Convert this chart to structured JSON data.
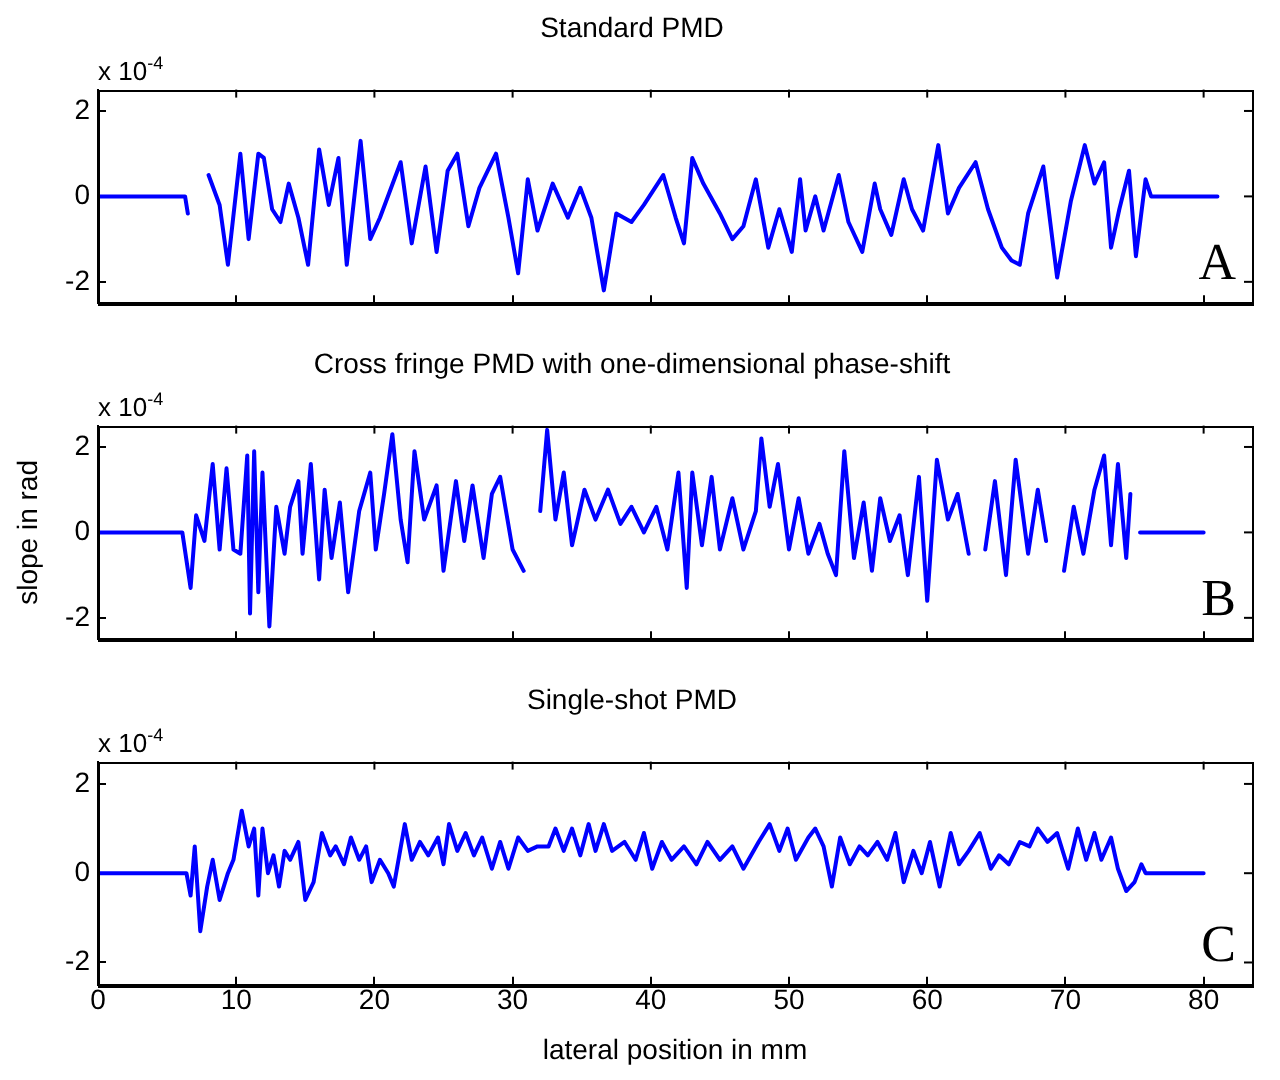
{
  "chart_data": [
    {
      "type": "line",
      "title": "Standard PMD",
      "annotations": [
        "x 10$^{-4}$",
        "A"
      ],
      "xlim": [
        0,
        83.5
      ],
      "xticks": [
        0,
        10,
        20,
        30,
        40,
        50,
        60,
        70,
        80
      ],
      "ylim": [
        -2.5,
        2.5
      ],
      "yticks": [
        -2,
        0,
        2
      ],
      "tick_labels": "y",
      "grid": false,
      "legend": false,
      "marker": "none",
      "line_style": "solid",
      "series": [
        {
          "color": "#0000ff",
          "x": [
            0,
            6.3,
            6.5,
            7.1,
            8.0,
            8.8,
            9.4,
            10.3,
            10.9,
            11.6,
            12.0,
            12.6,
            13.2,
            13.8,
            14.5,
            15.2,
            16.0,
            16.7,
            17.4,
            18.0,
            19.0,
            19.7,
            20.4,
            21.9,
            22.7,
            23.7,
            24.5,
            25.3,
            26.0,
            26.8,
            27.6,
            28.8,
            29.7,
            30.4,
            31.1,
            31.8,
            32.9,
            34.0,
            34.9,
            35.7,
            36.6,
            37.5,
            38.6,
            39.5,
            40.9,
            41.8,
            42.4,
            43.0,
            43.8,
            45.0,
            45.9,
            46.7,
            47.6,
            48.5,
            49.3,
            50.2,
            50.8,
            51.2,
            51.9,
            52.5,
            53.6,
            54.3,
            55.3,
            56.2,
            56.6,
            57.4,
            58.3,
            58.9,
            59.7,
            60.8,
            61.5,
            62.3,
            63.5,
            64.4,
            65.4,
            66.1,
            66.7,
            67.3,
            68.4,
            69.4,
            70.4,
            71.4,
            72.1,
            72.8,
            73.3,
            73.9,
            74.6,
            75.1,
            75.8,
            76.2,
            81.0
          ],
          "values": [
            0,
            0,
            -0.4,
            null,
            0.5,
            -0.2,
            -1.6,
            1.0,
            -1.0,
            1.0,
            0.9,
            -0.3,
            -0.6,
            0.3,
            -0.5,
            -1.6,
            1.1,
            -0.2,
            0.9,
            -1.6,
            1.3,
            -1.0,
            -0.5,
            0.8,
            -1.1,
            0.7,
            -1.3,
            0.6,
            1.0,
            -0.7,
            0.2,
            1.0,
            -0.5,
            -1.8,
            0.4,
            -0.8,
            0.3,
            -0.5,
            0.2,
            -0.5,
            -2.2,
            -0.4,
            -0.6,
            -0.2,
            0.5,
            -0.5,
            -1.1,
            0.9,
            0.3,
            -0.4,
            -1.0,
            -0.7,
            0.4,
            -1.2,
            -0.3,
            -1.3,
            0.4,
            -0.8,
            0.0,
            -0.8,
            0.5,
            -0.6,
            -1.3,
            0.3,
            -0.3,
            -0.9,
            0.4,
            -0.3,
            -0.8,
            1.2,
            -0.4,
            0.2,
            0.8,
            -0.3,
            -1.2,
            -1.5,
            -1.6,
            -0.4,
            0.7,
            -1.9,
            -0.1,
            1.2,
            0.3,
            0.8,
            -1.2,
            -0.3,
            0.6,
            -1.4,
            0.4,
            0,
            0
          ]
        }
      ]
    },
    {
      "type": "line",
      "title": "Cross fringe PMD with one-dimensional phase-shift",
      "ylabel": "slope in rad",
      "annotations": [
        "x 10$^{-4}$",
        "B"
      ],
      "xlim": [
        0,
        83.5
      ],
      "xticks": [
        0,
        10,
        20,
        30,
        40,
        50,
        60,
        70,
        80
      ],
      "ylim": [
        -2.5,
        2.5
      ],
      "yticks": [
        -2,
        0,
        2
      ],
      "tick_labels": "y",
      "grid": false,
      "legend": false,
      "marker": "none",
      "line_style": "solid",
      "series": [
        {
          "color": "#0000ff",
          "x": [
            0,
            6.1,
            6.7,
            7.1,
            7.7,
            8.3,
            8.8,
            9.3,
            9.8,
            10.3,
            10.8,
            11.0,
            11.3,
            11.6,
            11.9,
            12.4,
            12.9,
            13.5,
            13.9,
            14.5,
            14.8,
            15.4,
            16.0,
            16.4,
            16.9,
            17.5,
            18.1,
            18.9,
            19.7,
            20.1,
            20.7,
            21.3,
            21.9,
            22.4,
            22.9,
            23.6,
            24.5,
            25.0,
            25.9,
            26.5,
            27.1,
            27.9,
            28.5,
            29.1,
            30.0,
            30.8,
            31.6,
            32.0,
            32.5,
            33.1,
            33.7,
            34.3,
            35.2,
            36.0,
            36.9,
            37.8,
            38.6,
            39.5,
            40.4,
            41.2,
            42.0,
            42.6,
            43.0,
            43.7,
            44.4,
            45.0,
            45.9,
            46.7,
            47.6,
            48.0,
            48.6,
            49.2,
            50.0,
            50.7,
            51.4,
            52.2,
            52.8,
            53.4,
            54.0,
            54.7,
            55.4,
            56.0,
            56.6,
            57.3,
            58.0,
            58.6,
            59.4,
            60.0,
            60.7,
            61.5,
            62.2,
            63.0,
            63.5,
            64.2,
            64.9,
            65.7,
            66.4,
            67.3,
            68.0,
            68.6,
            69.2,
            69.9,
            70.6,
            71.3,
            72.1,
            72.8,
            73.3,
            73.8,
            74.4,
            74.7,
            75.0,
            75.4,
            80.0
          ],
          "values": [
            0,
            0,
            -1.3,
            0.4,
            -0.2,
            1.6,
            -0.4,
            1.5,
            -0.4,
            -0.5,
            1.8,
            -1.9,
            1.9,
            -1.4,
            1.4,
            -2.2,
            0.6,
            -0.5,
            0.6,
            1.2,
            -0.5,
            1.6,
            -1.1,
            1.0,
            -0.6,
            0.7,
            -1.4,
            0.5,
            1.4,
            -0.4,
            0.9,
            2.3,
            0.3,
            -0.7,
            1.9,
            0.3,
            1.1,
            -0.9,
            1.2,
            -0.2,
            1.1,
            -0.6,
            0.9,
            1.3,
            -0.4,
            -0.9,
            null,
            0.5,
            2.4,
            0.3,
            1.4,
            -0.3,
            1.0,
            0.3,
            1.0,
            0.2,
            0.6,
            0.0,
            0.6,
            -0.4,
            1.4,
            -1.3,
            1.4,
            -0.3,
            1.3,
            -0.4,
            0.8,
            -0.4,
            0.5,
            2.2,
            0.6,
            1.6,
            -0.4,
            0.8,
            -0.5,
            0.2,
            -0.5,
            -1.0,
            1.9,
            -0.6,
            0.7,
            -0.9,
            0.8,
            -0.2,
            0.4,
            -1.0,
            1.3,
            -1.6,
            1.7,
            0.3,
            0.9,
            -0.5,
            null,
            -0.4,
            1.2,
            -1.0,
            1.7,
            -0.5,
            1.0,
            -0.2,
            null,
            -0.9,
            0.6,
            -0.5,
            1.0,
            1.8,
            -0.3,
            1.6,
            -0.6,
            0.9,
            null,
            0,
            0
          ]
        }
      ]
    },
    {
      "type": "line",
      "title": "Single-shot PMD",
      "xlabel": "lateral position in mm",
      "annotations": [
        "x 10$^{-4}$",
        "C"
      ],
      "xlim": [
        0,
        83.5
      ],
      "xticks": [
        0,
        10,
        20,
        30,
        40,
        50,
        60,
        70,
        80
      ],
      "ylim": [
        -2.5,
        2.5
      ],
      "yticks": [
        -2,
        0,
        2
      ],
      "grid": false,
      "legend": false,
      "marker": "none",
      "line_style": "solid",
      "series": [
        {
          "color": "#0000ff",
          "x": [
            0,
            6.4,
            6.7,
            7.0,
            7.4,
            7.9,
            8.3,
            8.8,
            9.4,
            9.8,
            10.4,
            10.9,
            11.3,
            11.6,
            11.9,
            12.3,
            12.7,
            13.1,
            13.5,
            13.9,
            14.5,
            15.0,
            15.6,
            16.2,
            16.8,
            17.2,
            17.8,
            18.3,
            18.9,
            19.4,
            19.8,
            20.4,
            21.0,
            21.4,
            22.2,
            22.7,
            23.3,
            23.9,
            24.6,
            25.0,
            25.4,
            26.0,
            26.6,
            27.2,
            27.8,
            28.5,
            29.1,
            29.7,
            30.4,
            31.1,
            31.8,
            32.6,
            33.1,
            33.7,
            34.3,
            34.9,
            35.5,
            36.0,
            36.6,
            37.2,
            38.1,
            38.9,
            39.5,
            40.1,
            40.8,
            41.5,
            42.4,
            43.3,
            44.1,
            45.0,
            45.9,
            46.7,
            47.8,
            48.6,
            49.3,
            49.9,
            50.5,
            51.4,
            51.9,
            52.5,
            53.1,
            53.7,
            54.4,
            55.1,
            55.7,
            56.4,
            57.1,
            57.7,
            58.3,
            59.0,
            59.6,
            60.2,
            60.9,
            61.7,
            62.3,
            63.0,
            63.8,
            64.6,
            65.2,
            65.9,
            66.7,
            67.4,
            68.0,
            68.7,
            69.4,
            70.2,
            70.9,
            71.5,
            72.1,
            72.6,
            73.3,
            73.8,
            74.4,
            75.0,
            75.5,
            75.8,
            80.0
          ],
          "values": [
            0,
            0,
            -0.5,
            0.6,
            -1.3,
            -0.3,
            0.3,
            -0.6,
            0.0,
            0.3,
            1.4,
            0.6,
            1.0,
            -0.5,
            1.0,
            0.0,
            0.4,
            -0.3,
            0.5,
            0.3,
            0.7,
            -0.6,
            -0.2,
            0.9,
            0.4,
            0.6,
            0.2,
            0.8,
            0.3,
            0.6,
            -0.2,
            0.3,
            0.0,
            -0.3,
            1.1,
            0.3,
            0.7,
            0.4,
            0.8,
            0.2,
            1.1,
            0.5,
            0.9,
            0.4,
            0.8,
            0.1,
            0.7,
            0.1,
            0.8,
            0.5,
            0.6,
            0.6,
            1.0,
            0.5,
            1.0,
            0.4,
            1.1,
            0.5,
            1.1,
            0.5,
            0.7,
            0.3,
            0.9,
            0.1,
            0.7,
            0.3,
            0.6,
            0.2,
            0.7,
            0.3,
            0.6,
            0.1,
            0.7,
            1.1,
            0.5,
            1.0,
            0.3,
            0.8,
            1.0,
            0.6,
            -0.3,
            0.8,
            0.2,
            0.6,
            0.4,
            0.7,
            0.3,
            0.9,
            -0.2,
            0.5,
            0.0,
            0.7,
            -0.3,
            0.9,
            0.2,
            0.5,
            0.9,
            0.1,
            0.4,
            0.2,
            0.7,
            0.6,
            1.0,
            0.7,
            0.9,
            0.1,
            1.0,
            0.3,
            0.9,
            0.3,
            0.8,
            0.1,
            -0.4,
            -0.2,
            0.2,
            0,
            0
          ]
        }
      ]
    }
  ]
}
